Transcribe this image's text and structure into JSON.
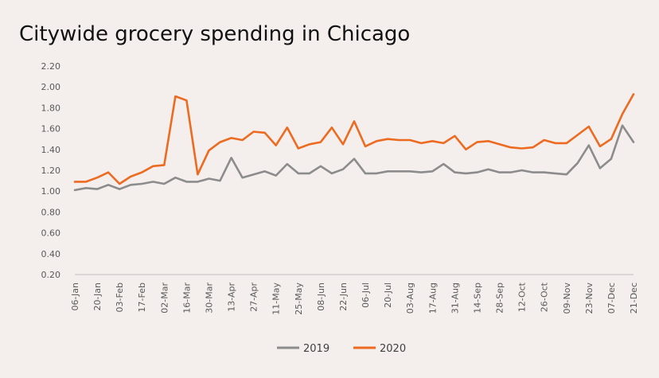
{
  "chart_data": {
    "type": "line",
    "title": "Citywide grocery spending in Chicago",
    "xlabel": "",
    "ylabel": "",
    "ylim": [
      0.2,
      2.2
    ],
    "yticks": [
      "0.20",
      "0.40",
      "0.60",
      "0.80",
      "1.00",
      "1.20",
      "1.40",
      "1.60",
      "1.80",
      "2.00",
      "2.20"
    ],
    "grid": false,
    "legend_position": "bottom",
    "x_tick_labels": [
      "06-Jan",
      "20-Jan",
      "03-Feb",
      "17-Feb",
      "02-Mar",
      "16-Mar",
      "30-Mar",
      "13-Apr",
      "27-Apr",
      "11-May",
      "25-May",
      "08-Jun",
      "22-Jun",
      "06-Jul",
      "20-Jul",
      "03-Aug",
      "17-Aug",
      "31-Aug",
      "14-Sep",
      "28-Sep",
      "12-Oct",
      "26-Oct",
      "09-Nov",
      "23-Nov",
      "07-Dec",
      "21-Dec"
    ],
    "series": [
      {
        "name": "2019",
        "color": "#8c8c8c",
        "values": [
          1.01,
          1.03,
          1.02,
          1.06,
          1.02,
          1.06,
          1.07,
          1.09,
          1.07,
          1.13,
          1.09,
          1.09,
          1.12,
          1.1,
          1.32,
          1.13,
          1.16,
          1.19,
          1.15,
          1.26,
          1.17,
          1.17,
          1.24,
          1.17,
          1.21,
          1.31,
          1.17,
          1.17,
          1.19,
          1.19,
          1.19,
          1.18,
          1.19,
          1.26,
          1.18,
          1.17,
          1.18,
          1.21,
          1.18,
          1.18,
          1.2,
          1.18,
          1.18,
          1.17,
          1.16,
          1.27,
          1.44,
          1.22,
          1.31,
          1.63,
          1.47
        ]
      },
      {
        "name": "2020",
        "color": "#ed6b21",
        "values": [
          1.09,
          1.09,
          1.13,
          1.18,
          1.07,
          1.14,
          1.18,
          1.24,
          1.25,
          1.91,
          1.87,
          1.16,
          1.39,
          1.47,
          1.51,
          1.49,
          1.57,
          1.56,
          1.44,
          1.61,
          1.41,
          1.45,
          1.47,
          1.61,
          1.45,
          1.67,
          1.43,
          1.48,
          1.5,
          1.49,
          1.49,
          1.46,
          1.48,
          1.46,
          1.53,
          1.4,
          1.47,
          1.48,
          1.45,
          1.42,
          1.41,
          1.42,
          1.49,
          1.46,
          1.46,
          1.54,
          1.62,
          1.43,
          1.5,
          1.74,
          1.93
        ]
      }
    ]
  }
}
